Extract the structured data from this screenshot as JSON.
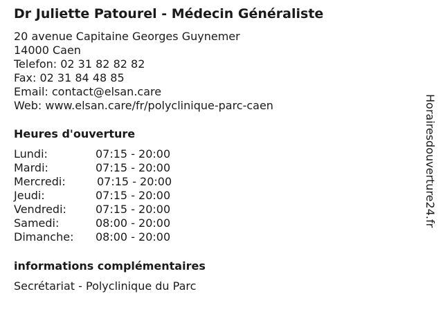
{
  "title": "Dr Juliette Patourel - Médecin Généraliste",
  "address": [
    "20 avenue Capitaine Georges Guynemer",
    "14000 Caen",
    "Telefon: 02 31 82 82 82",
    "Fax: 02 31 84 48 85",
    "Email: contact@elsan.care",
    "Web: www.elsan.care/fr/polyclinique-parc-caen"
  ],
  "hours_heading": "Heures d'ouverture",
  "hours": [
    {
      "day": "Lundi:",
      "time": "07:15 - 20:00"
    },
    {
      "day": "Mardi:",
      "time": "07:15 - 20:00"
    },
    {
      "day": "Mercredi:",
      "time": "07:15 - 20:00"
    },
    {
      "day": "Jeudi:",
      "time": "07:15 - 20:00"
    },
    {
      "day": "Vendredi:",
      "time": "07:15 - 20:00"
    },
    {
      "day": "Samedi:",
      "time": "08:00 - 20:00"
    },
    {
      "day": "Dimanche:",
      "time": "08:00 - 20:00"
    }
  ],
  "extra_heading": "informations complémentaires",
  "extra_text": "Secrétariat - Polyclinique du Parc",
  "side_brand": "Horairesdouverture24.fr"
}
